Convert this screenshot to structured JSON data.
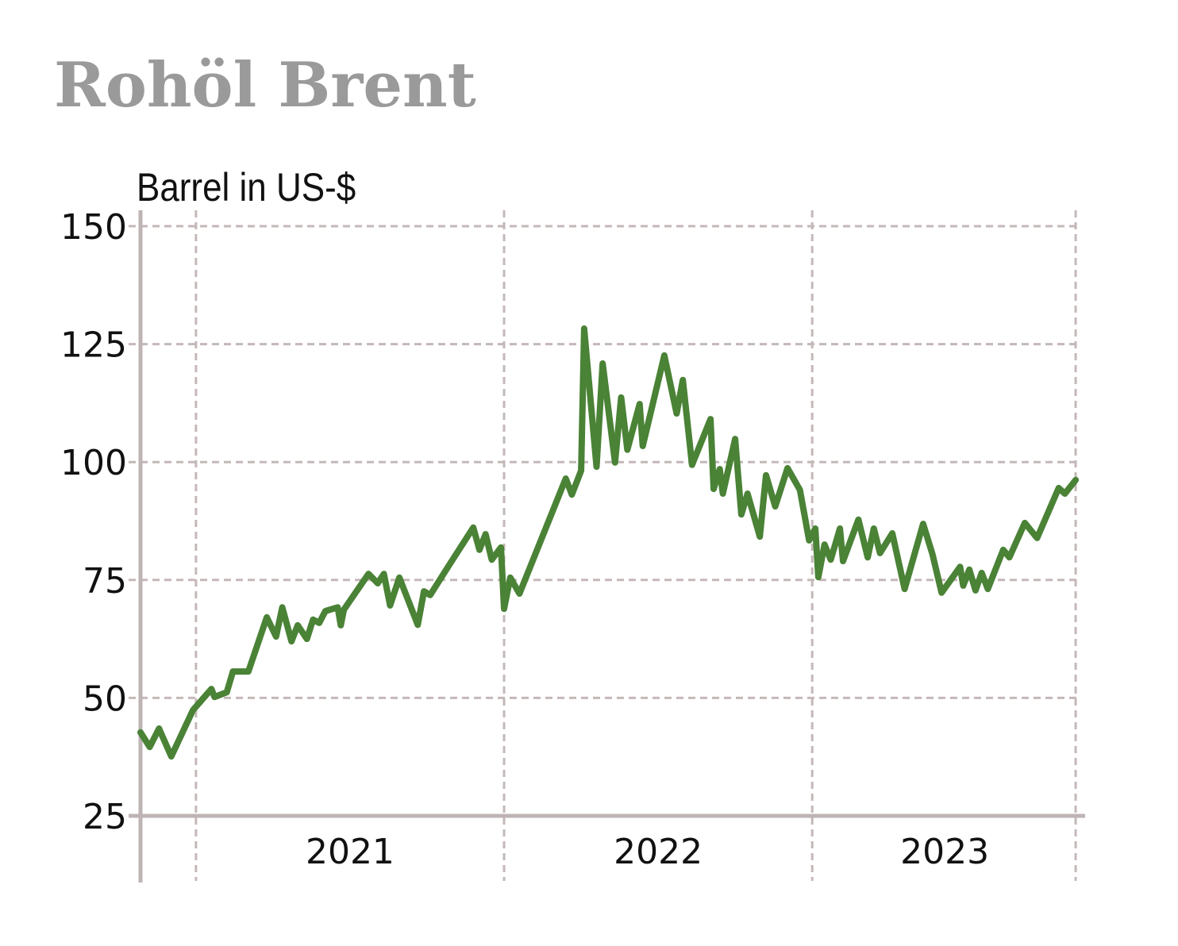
{
  "chart_data": {
    "type": "line",
    "title": "Rohöl Brent",
    "ylabel": "Barrel in US-$",
    "xlabel": "",
    "ylim": [
      25,
      150
    ],
    "xlim": [
      2020.82,
      2023.86
    ],
    "yticks": [
      150,
      125,
      100,
      75,
      50,
      25
    ],
    "xticks": [
      {
        "label": "2021",
        "at": 2021.5
      },
      {
        "label": "2022",
        "at": 2022.5
      },
      {
        "label": "2023",
        "at": 2023.43
      }
    ],
    "x_gridlines": [
      2021,
      2022,
      2023,
      2023.855
    ],
    "grid": true,
    "legend": "none",
    "line_color": "#4a8236",
    "grid_color": "#c4b8b8",
    "axis_color": "#bfb4b4",
    "title_color": "#9a9a9a",
    "series": [
      {
        "name": "Brent",
        "x": [
          2020.82,
          2020.85,
          2020.88,
          2020.92,
          2020.99,
          2021.05,
          2021.06,
          2021.1,
          2021.12,
          2021.17,
          2021.23,
          2021.26,
          2021.28,
          2021.31,
          2021.33,
          2021.36,
          2021.38,
          2021.4,
          2021.42,
          2021.46,
          2021.47,
          2021.48,
          2021.56,
          2021.59,
          2021.61,
          2021.63,
          2021.66,
          2021.72,
          2021.74,
          2021.76,
          2021.82,
          2021.9,
          2021.92,
          2021.94,
          2021.96,
          2021.99,
          2022.0,
          2022.02,
          2022.05,
          2022.2,
          2022.22,
          2022.25,
          2022.26,
          2022.3,
          2022.32,
          2022.36,
          2022.38,
          2022.4,
          2022.44,
          2022.45,
          2022.52,
          2022.56,
          2022.58,
          2022.61,
          2022.67,
          2022.68,
          2022.7,
          2022.71,
          2022.75,
          2022.77,
          2022.79,
          2022.83,
          2022.85,
          2022.88,
          2022.92,
          2022.96,
          2022.99,
          2023.01,
          2023.02,
          2023.04,
          2023.06,
          2023.09,
          2023.1,
          2023.15,
          2023.18,
          2023.2,
          2023.22,
          2023.26,
          2023.3,
          2023.36,
          2023.39,
          2023.42,
          2023.48,
          2023.49,
          2023.51,
          2023.53,
          2023.55,
          2023.57,
          2023.62,
          2023.64,
          2023.69,
          2023.73,
          2023.8,
          2023.82,
          2023.855
        ],
        "values": [
          42.7,
          39.6,
          43.5,
          37.6,
          47.4,
          51.9,
          50.2,
          51.2,
          55.6,
          55.6,
          67.1,
          63.0,
          69.2,
          62.0,
          65.4,
          62.5,
          66.6,
          65.9,
          68.4,
          69.2,
          65.4,
          68.7,
          76.3,
          74.3,
          76.3,
          69.6,
          75.5,
          65.5,
          72.6,
          71.8,
          78.0,
          86.1,
          81.4,
          84.7,
          79.3,
          81.9,
          68.9,
          75.5,
          72.1,
          96.5,
          93.1,
          98.2,
          128.3,
          99.0,
          120.9,
          99.9,
          113.7,
          102.6,
          112.3,
          103.4,
          122.6,
          110.3,
          117.4,
          99.4,
          109.1,
          94.3,
          98.5,
          93.3,
          104.9,
          88.9,
          93.3,
          84.2,
          97.2,
          90.6,
          98.7,
          94.1,
          83.4,
          85.9,
          75.6,
          82.5,
          79.3,
          85.9,
          79.0,
          87.8,
          79.8,
          85.9,
          80.7,
          84.9,
          73.1,
          86.9,
          80.5,
          72.3,
          77.8,
          73.8,
          77.2,
          72.8,
          76.5,
          73.1,
          81.4,
          79.8,
          87.1,
          83.9,
          94.5,
          93.3,
          96.2
        ]
      }
    ]
  }
}
